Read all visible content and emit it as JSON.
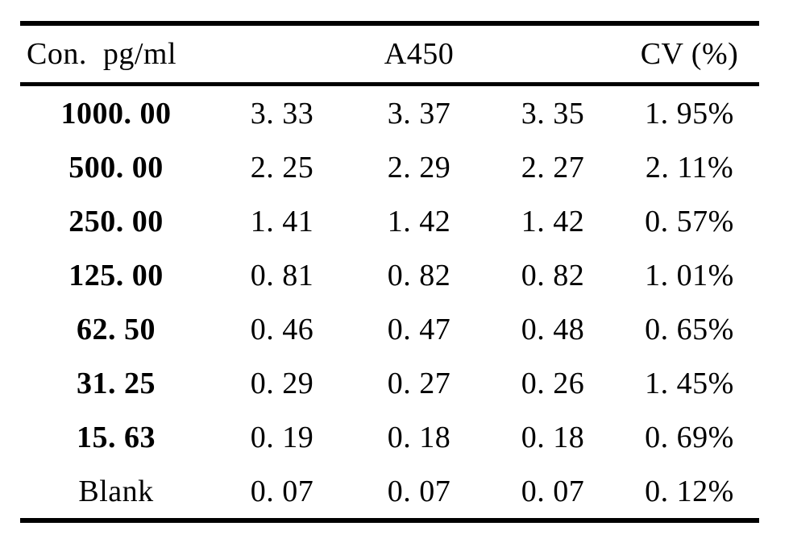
{
  "page": {
    "background_color": "#ffffff",
    "text_color": "#000000",
    "rule_color": "#000000"
  },
  "table": {
    "header": {
      "con_label": "Con.  pg/ml",
      "a450_label": "A450",
      "cv_label": "CV (%)"
    },
    "rows": [
      {
        "con": "1000. 00",
        "a1": "3. 33",
        "a2": "3. 37",
        "a3": "3. 35",
        "cv": "1. 95%"
      },
      {
        "con": "500. 00",
        "a1": "2. 25",
        "a2": "2. 29",
        "a3": "2. 27",
        "cv": "2. 11%"
      },
      {
        "con": "250. 00",
        "a1": "1. 41",
        "a2": "1. 42",
        "a3": "1. 42",
        "cv": "0. 57%"
      },
      {
        "con": "125. 00",
        "a1": "0. 81",
        "a2": "0. 82",
        "a3": "0. 82",
        "cv": "1. 01%"
      },
      {
        "con": "62. 50",
        "a1": "0. 46",
        "a2": "0. 47",
        "a3": "0. 48",
        "cv": "0. 65%"
      },
      {
        "con": "31. 25",
        "a1": "0. 29",
        "a2": "0. 27",
        "a3": "0. 26",
        "cv": "1. 45%"
      },
      {
        "con": "15. 63",
        "a1": "0. 19",
        "a2": "0. 18",
        "a3": "0. 18",
        "cv": "0. 69%"
      },
      {
        "con": "Blank",
        "a1": "0. 07",
        "a2": "0. 07",
        "a3": "0. 07",
        "cv": "0. 12%"
      }
    ]
  }
}
